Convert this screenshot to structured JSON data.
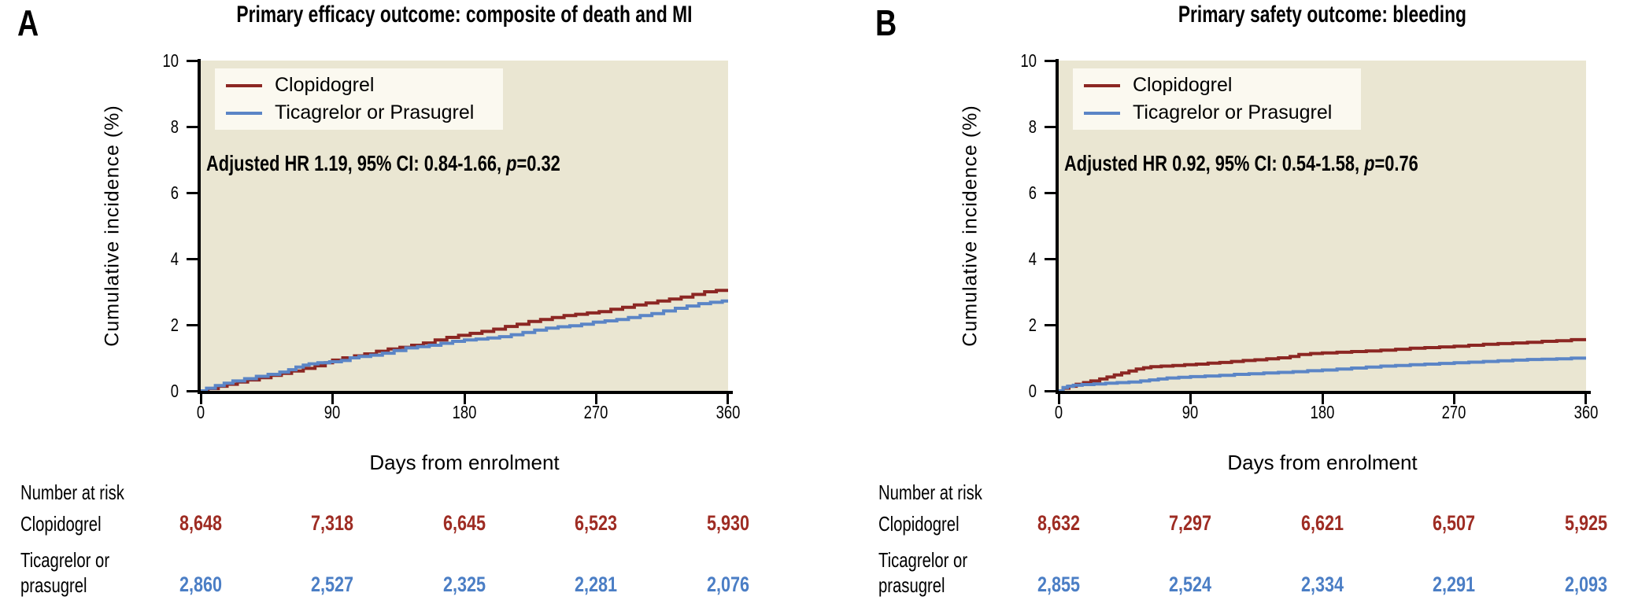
{
  "figure": {
    "background": "#ffffff",
    "plot_background": "#eae6d2",
    "legend_background": "#fbf9f0",
    "axis_color": "#000000",
    "clopidogrel_color": "#8c2723",
    "ticagrelor_color": "#5b85c6",
    "clopidogrel_text_color": "#9e2c23",
    "ticagrelor_text_color": "#4b7ec5"
  },
  "panels": [
    {
      "letter": "A",
      "hr_prefix": "Adjusted HR 1.19, 95% CI: 0.84-1.66, ",
      "hr_p": "p",
      "hr_suffix": "=0.32",
      "risk_header": "Number at risk",
      "row1_label": "Clopidogrel",
      "row2_label_line1": "Ticagrelor or",
      "row2_label_line2": "prasugrel"
    },
    {
      "letter": "B",
      "hr_prefix": "Adjusted HR 0.92, 95% CI: 0.54-1.58, ",
      "hr_p": "p",
      "hr_suffix": "=0.76",
      "risk_header": "Number at risk",
      "row1_label": "Clopidogrel",
      "row2_label_line1": "Ticagrelor or",
      "row2_label_line2": "prasugrel"
    }
  ],
  "chart_data": [
    {
      "type": "line",
      "step": true,
      "title": "Primary efficacy outcome: composite of death and MI",
      "xlabel": "Days from enrolment",
      "ylabel": "Cumulative incidence (%)",
      "xlim": [
        0,
        360
      ],
      "ylim": [
        0,
        10
      ],
      "xticks": [
        0,
        90,
        180,
        270,
        360
      ],
      "yticks": [
        0,
        2,
        4,
        6,
        8,
        10
      ],
      "grid": false,
      "legend_position": "upper-left",
      "annotation": "Adjusted HR 1.19, 95% CI: 0.84-1.66, p=0.32",
      "series": [
        {
          "name": "Clopidogrel",
          "color": "#8c2723",
          "points": [
            [
              0,
              0
            ],
            [
              5,
              0.07
            ],
            [
              12,
              0.14
            ],
            [
              18,
              0.2
            ],
            [
              25,
              0.27
            ],
            [
              32,
              0.33
            ],
            [
              40,
              0.4
            ],
            [
              48,
              0.47
            ],
            [
              55,
              0.53
            ],
            [
              62,
              0.6
            ],
            [
              70,
              0.68
            ],
            [
              78,
              0.76
            ],
            [
              85,
              0.85
            ],
            [
              90,
              0.93
            ],
            [
              97,
              1.0
            ],
            [
              105,
              1.06
            ],
            [
              112,
              1.12
            ],
            [
              120,
              1.2
            ],
            [
              128,
              1.27
            ],
            [
              136,
              1.32
            ],
            [
              144,
              1.38
            ],
            [
              152,
              1.45
            ],
            [
              160,
              1.54
            ],
            [
              168,
              1.62
            ],
            [
              176,
              1.68
            ],
            [
              184,
              1.74
            ],
            [
              192,
              1.8
            ],
            [
              200,
              1.87
            ],
            [
              208,
              1.95
            ],
            [
              216,
              2.02
            ],
            [
              224,
              2.1
            ],
            [
              232,
              2.16
            ],
            [
              240,
              2.22
            ],
            [
              248,
              2.28
            ],
            [
              256,
              2.32
            ],
            [
              264,
              2.36
            ],
            [
              272,
              2.4
            ],
            [
              280,
              2.47
            ],
            [
              288,
              2.53
            ],
            [
              296,
              2.6
            ],
            [
              304,
              2.66
            ],
            [
              312,
              2.72
            ],
            [
              320,
              2.78
            ],
            [
              328,
              2.84
            ],
            [
              336,
              2.92
            ],
            [
              344,
              3.0
            ],
            [
              352,
              3.04
            ],
            [
              360,
              3.08
            ]
          ]
        },
        {
          "name": "Ticagrelor or Prasugrel",
          "color": "#5b85c6",
          "points": [
            [
              0,
              0
            ],
            [
              4,
              0.08
            ],
            [
              10,
              0.16
            ],
            [
              16,
              0.23
            ],
            [
              22,
              0.3
            ],
            [
              30,
              0.37
            ],
            [
              38,
              0.44
            ],
            [
              46,
              0.5
            ],
            [
              54,
              0.57
            ],
            [
              60,
              0.64
            ],
            [
              65,
              0.72
            ],
            [
              70,
              0.78
            ],
            [
              74,
              0.82
            ],
            [
              80,
              0.85
            ],
            [
              88,
              0.88
            ],
            [
              96,
              0.92
            ],
            [
              102,
              1.0
            ],
            [
              108,
              1.04
            ],
            [
              116,
              1.08
            ],
            [
              124,
              1.14
            ],
            [
              132,
              1.22
            ],
            [
              140,
              1.3
            ],
            [
              148,
              1.34
            ],
            [
              156,
              1.38
            ],
            [
              164,
              1.44
            ],
            [
              172,
              1.5
            ],
            [
              180,
              1.54
            ],
            [
              188,
              1.57
            ],
            [
              196,
              1.6
            ],
            [
              204,
              1.64
            ],
            [
              212,
              1.7
            ],
            [
              220,
              1.77
            ],
            [
              228,
              1.84
            ],
            [
              236,
              1.9
            ],
            [
              244,
              1.94
            ],
            [
              252,
              1.97
            ],
            [
              260,
              2.02
            ],
            [
              268,
              2.08
            ],
            [
              276,
              2.12
            ],
            [
              284,
              2.16
            ],
            [
              292,
              2.22
            ],
            [
              300,
              2.28
            ],
            [
              308,
              2.34
            ],
            [
              316,
              2.42
            ],
            [
              324,
              2.5
            ],
            [
              332,
              2.57
            ],
            [
              340,
              2.64
            ],
            [
              348,
              2.68
            ],
            [
              356,
              2.72
            ],
            [
              360,
              2.74
            ]
          ]
        }
      ],
      "number_at_risk": {
        "header": "Number at risk",
        "rows": [
          {
            "label": "Clopidogrel",
            "values": [
              "8,648",
              "7,318",
              "6,645",
              "6,523",
              "5,930"
            ]
          },
          {
            "label": "Ticagrelor or prasugrel",
            "values": [
              "2,860",
              "2,527",
              "2,325",
              "2,281",
              "2,076"
            ]
          }
        ]
      }
    },
    {
      "type": "line",
      "step": true,
      "title": "Primary safety outcome: bleeding",
      "xlabel": "Days from enrolment",
      "ylabel": "Cumulative incidence (%)",
      "xlim": [
        0,
        360
      ],
      "ylim": [
        0,
        10
      ],
      "xticks": [
        0,
        90,
        180,
        270,
        360
      ],
      "yticks": [
        0,
        2,
        4,
        6,
        8,
        10
      ],
      "grid": false,
      "legend_position": "upper-left",
      "annotation": "Adjusted HR 0.92, 95% CI: 0.54-1.58, p=0.76",
      "series": [
        {
          "name": "Clopidogrel",
          "color": "#8c2723",
          "points": [
            [
              0,
              0
            ],
            [
              3,
              0.08
            ],
            [
              7,
              0.14
            ],
            [
              12,
              0.2
            ],
            [
              17,
              0.25
            ],
            [
              22,
              0.3
            ],
            [
              28,
              0.36
            ],
            [
              33,
              0.42
            ],
            [
              38,
              0.48
            ],
            [
              43,
              0.54
            ],
            [
              48,
              0.6
            ],
            [
              53,
              0.66
            ],
            [
              58,
              0.7
            ],
            [
              63,
              0.73
            ],
            [
              70,
              0.75
            ],
            [
              78,
              0.77
            ],
            [
              86,
              0.79
            ],
            [
              94,
              0.81
            ],
            [
              102,
              0.84
            ],
            [
              110,
              0.86
            ],
            [
              118,
              0.89
            ],
            [
              126,
              0.92
            ],
            [
              134,
              0.94
            ],
            [
              142,
              0.97
            ],
            [
              150,
              1.0
            ],
            [
              158,
              1.04
            ],
            [
              164,
              1.1
            ],
            [
              172,
              1.13
            ],
            [
              180,
              1.15
            ],
            [
              190,
              1.17
            ],
            [
              200,
              1.19
            ],
            [
              210,
              1.21
            ],
            [
              220,
              1.23
            ],
            [
              230,
              1.26
            ],
            [
              240,
              1.29
            ],
            [
              250,
              1.31
            ],
            [
              260,
              1.33
            ],
            [
              270,
              1.35
            ],
            [
              280,
              1.38
            ],
            [
              290,
              1.41
            ],
            [
              300,
              1.43
            ],
            [
              310,
              1.45
            ],
            [
              320,
              1.47
            ],
            [
              330,
              1.5
            ],
            [
              340,
              1.52
            ],
            [
              350,
              1.55
            ],
            [
              360,
              1.56
            ]
          ]
        },
        {
          "name": "Ticagrelor or Prasugrel",
          "color": "#5b85c6",
          "points": [
            [
              0,
              0
            ],
            [
              3,
              0.1
            ],
            [
              6,
              0.14
            ],
            [
              10,
              0.17
            ],
            [
              16,
              0.19
            ],
            [
              24,
              0.21
            ],
            [
              32,
              0.23
            ],
            [
              40,
              0.25
            ],
            [
              48,
              0.27
            ],
            [
              56,
              0.3
            ],
            [
              62,
              0.33
            ],
            [
              68,
              0.36
            ],
            [
              74,
              0.39
            ],
            [
              82,
              0.41
            ],
            [
              90,
              0.43
            ],
            [
              100,
              0.45
            ],
            [
              110,
              0.47
            ],
            [
              120,
              0.5
            ],
            [
              130,
              0.52
            ],
            [
              140,
              0.54
            ],
            [
              150,
              0.56
            ],
            [
              160,
              0.58
            ],
            [
              170,
              0.61
            ],
            [
              180,
              0.63
            ],
            [
              190,
              0.66
            ],
            [
              200,
              0.69
            ],
            [
              210,
              0.72
            ],
            [
              220,
              0.75
            ],
            [
              230,
              0.77
            ],
            [
              240,
              0.79
            ],
            [
              250,
              0.81
            ],
            [
              260,
              0.83
            ],
            [
              270,
              0.85
            ],
            [
              280,
              0.87
            ],
            [
              290,
              0.89
            ],
            [
              300,
              0.91
            ],
            [
              310,
              0.93
            ],
            [
              320,
              0.95
            ],
            [
              330,
              0.96
            ],
            [
              340,
              0.97
            ],
            [
              350,
              0.99
            ],
            [
              360,
              1.0
            ]
          ]
        }
      ],
      "number_at_risk": {
        "header": "Number at risk",
        "rows": [
          {
            "label": "Clopidogrel",
            "values": [
              "8,632",
              "7,297",
              "6,621",
              "6,507",
              "5,925"
            ]
          },
          {
            "label": "Ticagrelor or prasugrel",
            "values": [
              "2,855",
              "2,524",
              "2,334",
              "2,291",
              "2,093"
            ]
          }
        ]
      }
    }
  ]
}
